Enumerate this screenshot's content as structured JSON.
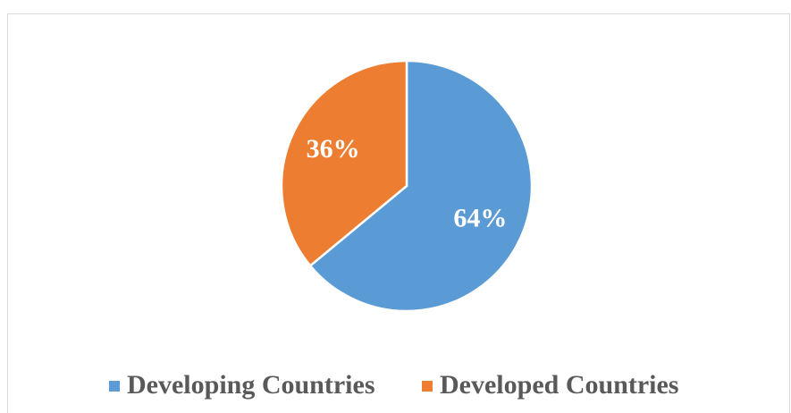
{
  "chart_data": {
    "type": "pie",
    "categories": [
      "Developing Countries",
      "Developed Countries"
    ],
    "values": [
      64,
      36
    ],
    "value_labels": [
      "64%",
      "36%"
    ],
    "colors": [
      "#5b9bd5",
      "#ed7d31"
    ],
    "legend": "bottom"
  }
}
